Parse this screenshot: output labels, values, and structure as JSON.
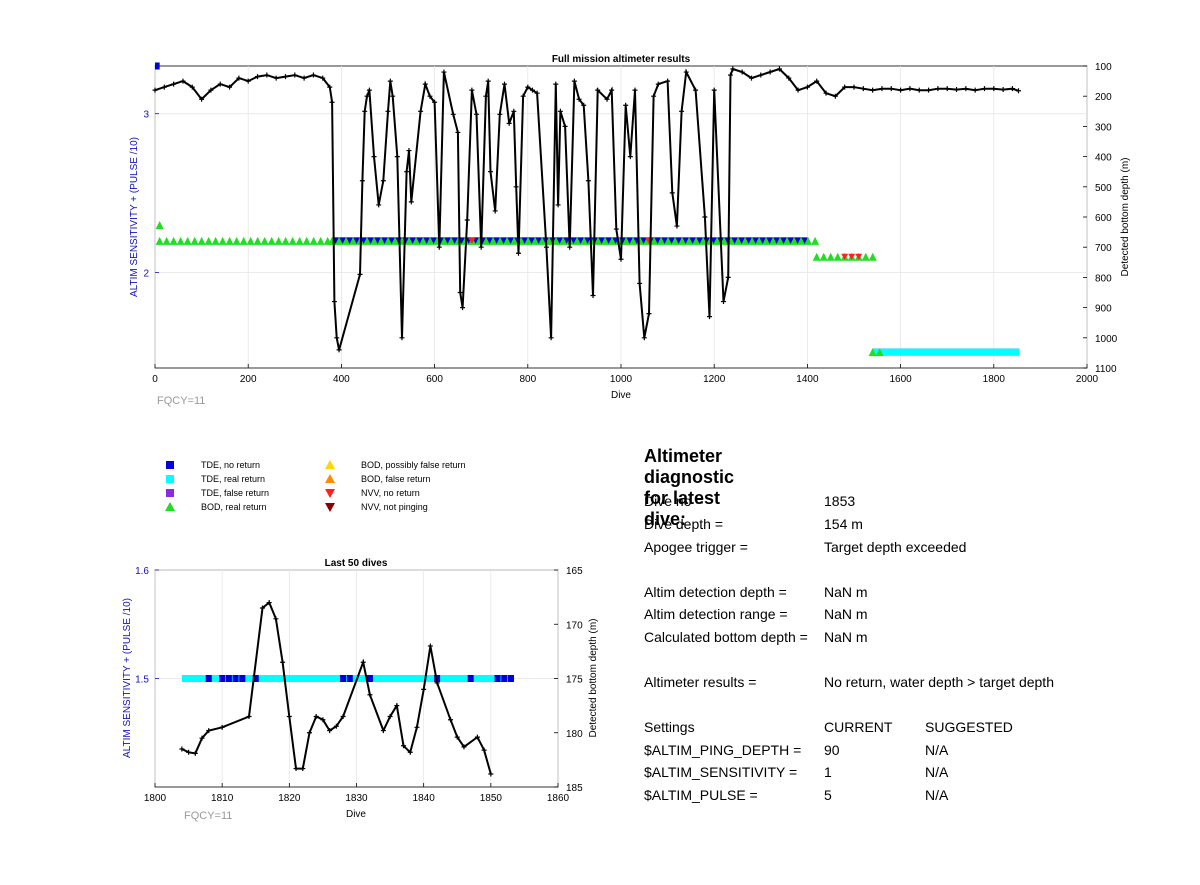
{
  "colors": {
    "tde_no_return": "#0000dd",
    "tde_real_return": "#00ffff",
    "tde_false_return": "#8a2be2",
    "bod_real_return": "#22dd22",
    "bod_possibly_false": "#ffd700",
    "bod_false_return": "#ff8c00",
    "nvv_no_return": "#ff2020",
    "nvv_not_pinging": "#8b0000",
    "depth_line": "#000000",
    "left_axis": "#1010c0",
    "note": "#999999"
  },
  "top_plot": {
    "title": "Full mission altimeter results",
    "xlabel": "Dive",
    "ylabel_left": "ALTIM SENSITIVITY + (PULSE /10)",
    "ylabel_right": "Detected bottom depth (m)",
    "x_ticks": [
      "0",
      "200",
      "400",
      "600",
      "800",
      "1000",
      "1200",
      "1400",
      "1600",
      "1800",
      "2000"
    ],
    "y_left_ticks": [
      "3",
      "2"
    ],
    "y_right_ticks": [
      "100",
      "200",
      "300",
      "400",
      "500",
      "600",
      "700",
      "800",
      "900",
      "1000",
      "1100"
    ],
    "note": "FQCY=11"
  },
  "bottom_plot": {
    "title": "Last 50 dives",
    "xlabel": "Dive",
    "ylabel_left": "ALTIM SENSITIVITY + (PULSE /10)",
    "ylabel_right": "Detected bottom depth (m)",
    "x_ticks": [
      "1800",
      "1810",
      "1820",
      "1830",
      "1840",
      "1850",
      "1860"
    ],
    "y_left_ticks": [
      "1.6",
      "1.5"
    ],
    "y_right_ticks": [
      "165",
      "170",
      "175",
      "180",
      "185"
    ],
    "note": "FQCY=11"
  },
  "legend": [
    {
      "label": "TDE, no return",
      "marker": "square",
      "color": "#0000dd"
    },
    {
      "label": "TDE, real return",
      "marker": "square",
      "color": "#00ffff"
    },
    {
      "label": "TDE, false return",
      "marker": "square",
      "color": "#8a2be2"
    },
    {
      "label": "BOD, real return",
      "marker": "tri-up",
      "color": "#22dd22"
    },
    {
      "label": "BOD, possibly false return",
      "marker": "tri-up",
      "color": "#ffd700"
    },
    {
      "label": "BOD, false return",
      "marker": "tri-up",
      "color": "#ff8c00"
    },
    {
      "label": "NVV, no return",
      "marker": "tri-down",
      "color": "#ff2020"
    },
    {
      "label": "NVV, not pinging",
      "marker": "tri-down",
      "color": "#8b0000"
    }
  ],
  "diagnostic": {
    "title": "Altimeter diagnostic for latest dive:",
    "dive_no_label": "Dive no =",
    "dive_no": "1853",
    "dive_depth_label": "Dive depth =",
    "dive_depth": "154 m",
    "apogee_label": "Apogee trigger =",
    "apogee": "Target depth exceeded",
    "det_depth_label": "Altim detection depth =",
    "det_depth": "NaN m",
    "det_range_label": "Altim detection range =",
    "det_range": "NaN m",
    "calc_depth_label": "Calculated bottom depth =",
    "calc_depth": "NaN m",
    "results_label": "Altimeter results =",
    "results": "No return, water depth > target depth",
    "settings_header": "Settings",
    "current_header": "CURRENT",
    "suggested_header": "SUGGESTED",
    "settings": [
      {
        "name": "$ALTIM_PING_DEPTH =",
        "current": "90",
        "suggested": "N/A"
      },
      {
        "name": "$ALTIM_SENSITIVITY =",
        "current": "1",
        "suggested": "N/A"
      },
      {
        "name": "$ALTIM_PULSE =",
        "current": "5",
        "suggested": "N/A"
      }
    ]
  },
  "chart_data": [
    {
      "type": "scatter",
      "title": "Full mission altimeter results",
      "xlabel": "Dive",
      "ylabel": "ALTIM SENSITIVITY + (PULSE /10)",
      "ylabel_right": "Detected bottom depth (m)",
      "xlim": [
        0,
        2000
      ],
      "ylim_left": [
        1.4,
        3.3
      ],
      "ylim_right": [
        1100,
        100
      ],
      "grid": true,
      "series": [
        {
          "name": "TDE, no return",
          "axis": "left",
          "segments": [
            [
              0,
              10,
              3.3
            ],
            [
              380,
              1400,
              2.2
            ],
            [
              1540,
              1855,
              1.5
            ]
          ]
        },
        {
          "name": "TDE, real return",
          "axis": "left",
          "segments": [
            [
              1540,
              1855,
              1.5
            ]
          ]
        },
        {
          "name": "BOD, real return",
          "axis": "left",
          "segments": [
            [
              10,
              20,
              2.3
            ],
            [
              10,
              380,
              2.2
            ],
            [
              380,
              1420,
              2.2
            ],
            [
              1420,
              1550,
              2.1
            ],
            [
              1540,
              1560,
              1.5
            ]
          ]
        },
        {
          "name": "NVV, no return",
          "axis": "left",
          "segments": [
            [
              680,
              690,
              2.2
            ],
            [
              1060,
              1075,
              2.2
            ],
            [
              1480,
              1520,
              2.1
            ]
          ]
        },
        {
          "name": "Detected bottom depth",
          "axis": "right",
          "x": [
            0,
            20,
            40,
            60,
            80,
            100,
            120,
            140,
            160,
            180,
            200,
            220,
            240,
            260,
            280,
            300,
            320,
            340,
            360,
            375,
            380,
            385,
            390,
            395,
            440,
            445,
            450,
            455,
            460,
            470,
            480,
            490,
            500,
            505,
            510,
            520,
            530,
            540,
            545,
            550,
            570,
            580,
            590,
            600,
            610,
            620,
            640,
            650,
            655,
            660,
            670,
            680,
            690,
            700,
            710,
            715,
            720,
            730,
            740,
            750,
            760,
            770,
            775,
            780,
            790,
            800,
            810,
            820,
            840,
            850,
            860,
            865,
            870,
            880,
            890,
            900,
            910,
            920,
            930,
            940,
            950,
            970,
            980,
            990,
            1000,
            1010,
            1020,
            1030,
            1040,
            1050,
            1060,
            1070,
            1080,
            1100,
            1110,
            1120,
            1130,
            1140,
            1160,
            1180,
            1190,
            1200,
            1220,
            1230,
            1235,
            1240,
            1260,
            1280,
            1300,
            1320,
            1340,
            1360,
            1380,
            1400,
            1420,
            1440,
            1460,
            1480,
            1500,
            1520,
            1540,
            1560,
            1580,
            1600,
            1620,
            1640,
            1660,
            1680,
            1700,
            1720,
            1740,
            1760,
            1780,
            1800,
            1820,
            1840,
            1853
          ],
          "y": [
            180,
            170,
            160,
            150,
            170,
            210,
            180,
            160,
            170,
            140,
            150,
            135,
            130,
            140,
            135,
            130,
            140,
            130,
            140,
            170,
            220,
            880,
            1000,
            1040,
            790,
            480,
            250,
            200,
            180,
            400,
            560,
            480,
            250,
            150,
            200,
            400,
            1000,
            450,
            380,
            550,
            250,
            160,
            200,
            220,
            700,
            120,
            260,
            320,
            850,
            900,
            610,
            180,
            260,
            700,
            200,
            150,
            450,
            580,
            260,
            160,
            290,
            250,
            500,
            720,
            200,
            170,
            180,
            190,
            700,
            1000,
            160,
            560,
            250,
            300,
            700,
            150,
            210,
            230,
            480,
            860,
            180,
            210,
            180,
            640,
            740,
            230,
            400,
            180,
            820,
            1000,
            920,
            200,
            160,
            150,
            520,
            630,
            250,
            120,
            180,
            600,
            930,
            180,
            880,
            800,
            130,
            110,
            120,
            140,
            130,
            120,
            110,
            140,
            180,
            170,
            150,
            190,
            200,
            170,
            170,
            175,
            180,
            175,
            175,
            180,
            175,
            180,
            180,
            175,
            175,
            178,
            175,
            180,
            175,
            175,
            178,
            175,
            182
          ]
        }
      ]
    },
    {
      "type": "scatter",
      "title": "Last 50 dives",
      "xlabel": "Dive",
      "ylabel": "ALTIM SENSITIVITY + (PULSE /10)",
      "ylabel_right": "Detected bottom depth (m)",
      "xlim": [
        1800,
        1860
      ],
      "ylim_left": [
        1.4,
        1.6
      ],
      "ylim_right": [
        185,
        165
      ],
      "grid": true,
      "series": [
        {
          "name": "TDE, real return",
          "axis": "left",
          "segments": [
            [
              1804,
              1853,
              1.5
            ]
          ]
        },
        {
          "name": "TDE, no return",
          "axis": "left",
          "points_x": [
            1808,
            1810,
            1811,
            1812,
            1813,
            1815,
            1828,
            1829,
            1832,
            1842,
            1847,
            1851,
            1852,
            1853
          ],
          "value": 1.5
        },
        {
          "name": "Detected bottom depth",
          "axis": "right",
          "x": [
            1804,
            1805,
            1806,
            1807,
            1808,
            1810,
            1814,
            1816,
            1817,
            1818,
            1819,
            1820,
            1821,
            1822,
            1823,
            1824,
            1825,
            1826,
            1827,
            1828,
            1831,
            1832,
            1834,
            1835,
            1836,
            1837,
            1838,
            1839,
            1840,
            1841,
            1842,
            1844,
            1845,
            1846,
            1848,
            1849,
            1850
          ],
          "y": [
            181.5,
            181.8,
            181.9,
            180.5,
            179.8,
            179.5,
            178.5,
            168.5,
            168,
            169.5,
            173.5,
            178.5,
            183.3,
            183.3,
            180,
            178.5,
            178.8,
            179.8,
            179.4,
            178.5,
            173.5,
            176.5,
            179.8,
            178.5,
            177.5,
            181.2,
            181.8,
            179.5,
            176,
            172,
            175.4,
            178.8,
            180.4,
            181.3,
            180.4,
            181.6,
            183.8
          ]
        }
      ]
    }
  ]
}
